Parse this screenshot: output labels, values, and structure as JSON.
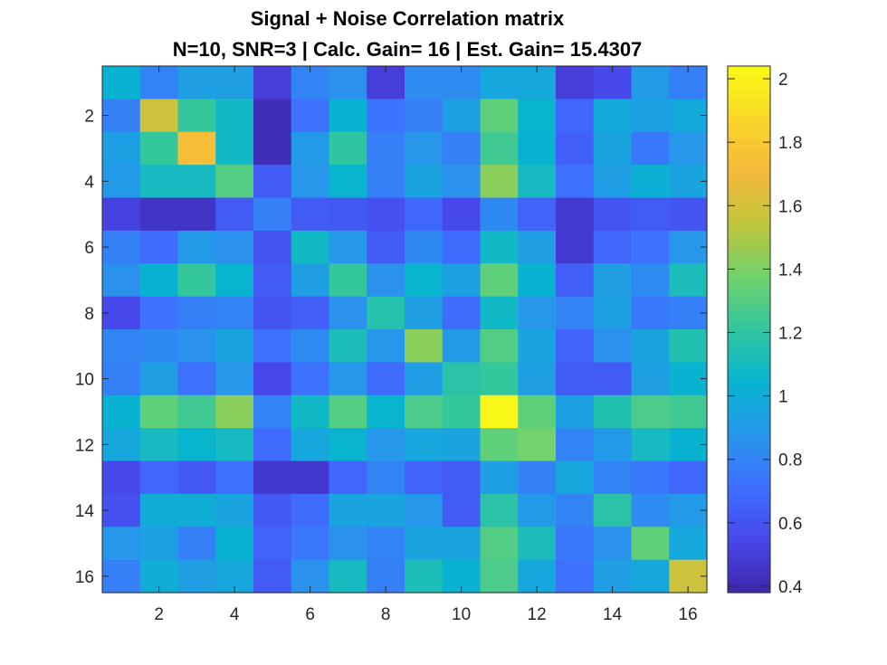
{
  "chart_data": {
    "type": "heatmap",
    "title": "Signal + Noise Correlation matrix",
    "subtitle": "N=10, SNR=3 | Calc. Gain= 16 | Est. Gain= 15.4307",
    "xlabel": "",
    "ylabel": "",
    "x_ticks": [
      "2",
      "4",
      "6",
      "8",
      "10",
      "12",
      "14",
      "16"
    ],
    "y_ticks": [
      "2",
      "4",
      "6",
      "8",
      "10",
      "12",
      "14",
      "16"
    ],
    "x_range": [
      0.5,
      16.5
    ],
    "y_range": [
      0.5,
      16.5
    ],
    "y_direction": "reverse",
    "colormap": "parula",
    "clim": [
      0.38,
      2.04
    ],
    "colorbar_ticks": [
      "0.4",
      "0.6",
      "0.8",
      "1",
      "1.2",
      "1.4",
      "1.6",
      "1.8",
      "2"
    ],
    "colorbar_position": "right",
    "values": [
      [
        1.03,
        0.8,
        0.92,
        0.92,
        0.5,
        0.8,
        0.85,
        0.5,
        0.83,
        0.83,
        0.97,
        0.97,
        0.5,
        0.55,
        0.9,
        0.78
      ],
      [
        0.78,
        1.58,
        1.22,
        1.08,
        0.42,
        0.72,
        1.03,
        0.73,
        0.78,
        0.93,
        1.33,
        1.05,
        0.68,
        0.98,
        0.93,
        0.98
      ],
      [
        0.93,
        1.22,
        1.73,
        1.08,
        0.42,
        0.9,
        1.2,
        0.78,
        0.88,
        0.78,
        1.25,
        1.03,
        0.65,
        0.95,
        0.75,
        0.88
      ],
      [
        0.9,
        1.1,
        1.1,
        1.3,
        0.63,
        0.88,
        1.05,
        0.78,
        0.95,
        0.86,
        1.43,
        1.1,
        0.72,
        0.92,
        1.02,
        0.95
      ],
      [
        0.52,
        0.45,
        0.45,
        0.63,
        0.78,
        0.63,
        0.62,
        0.58,
        0.68,
        0.55,
        0.82,
        0.66,
        0.48,
        0.6,
        0.63,
        0.6
      ],
      [
        0.78,
        0.7,
        0.9,
        0.85,
        0.6,
        1.08,
        0.88,
        0.63,
        0.82,
        0.7,
        1.08,
        0.92,
        0.48,
        0.68,
        0.72,
        0.88
      ],
      [
        0.86,
        1.03,
        1.22,
        1.05,
        0.63,
        0.92,
        1.22,
        0.86,
        1.05,
        0.93,
        1.33,
        1.03,
        0.65,
        0.92,
        0.83,
        1.12
      ],
      [
        0.55,
        0.72,
        0.78,
        0.8,
        0.6,
        0.65,
        0.86,
        1.17,
        0.92,
        0.7,
        1.08,
        0.88,
        0.8,
        0.93,
        0.75,
        0.78
      ],
      [
        0.8,
        0.82,
        0.86,
        0.95,
        0.72,
        0.83,
        1.12,
        0.88,
        1.43,
        0.9,
        1.3,
        0.95,
        0.66,
        0.86,
        0.95,
        1.15
      ],
      [
        0.78,
        0.92,
        0.72,
        0.88,
        0.55,
        0.72,
        0.88,
        0.7,
        0.92,
        1.18,
        1.22,
        0.92,
        0.63,
        0.63,
        0.92,
        1.03
      ],
      [
        1.03,
        1.33,
        1.25,
        1.43,
        0.8,
        1.08,
        1.3,
        1.05,
        1.28,
        1.22,
        2.02,
        1.33,
        0.93,
        1.15,
        1.28,
        1.25
      ],
      [
        0.97,
        1.1,
        1.05,
        1.1,
        0.7,
        0.97,
        1.05,
        0.88,
        0.97,
        0.95,
        1.33,
        1.38,
        0.8,
        0.9,
        1.1,
        1.03
      ],
      [
        0.55,
        0.68,
        0.62,
        0.72,
        0.47,
        0.47,
        0.68,
        0.8,
        0.66,
        0.63,
        0.93,
        0.78,
        0.97,
        0.8,
        0.75,
        0.68
      ],
      [
        0.58,
        1.0,
        1.0,
        0.95,
        0.62,
        0.7,
        0.95,
        0.95,
        0.88,
        0.63,
        1.18,
        0.9,
        0.8,
        1.18,
        0.83,
        0.9
      ],
      [
        0.88,
        0.93,
        0.78,
        1.03,
        0.66,
        0.75,
        0.86,
        0.8,
        0.95,
        0.95,
        1.3,
        1.12,
        0.75,
        0.86,
        1.33,
        0.97
      ],
      [
        0.78,
        1.0,
        0.92,
        0.97,
        0.63,
        0.86,
        1.1,
        0.78,
        1.13,
        1.03,
        1.28,
        0.97,
        0.72,
        0.92,
        0.97,
        1.58
      ]
    ]
  }
}
